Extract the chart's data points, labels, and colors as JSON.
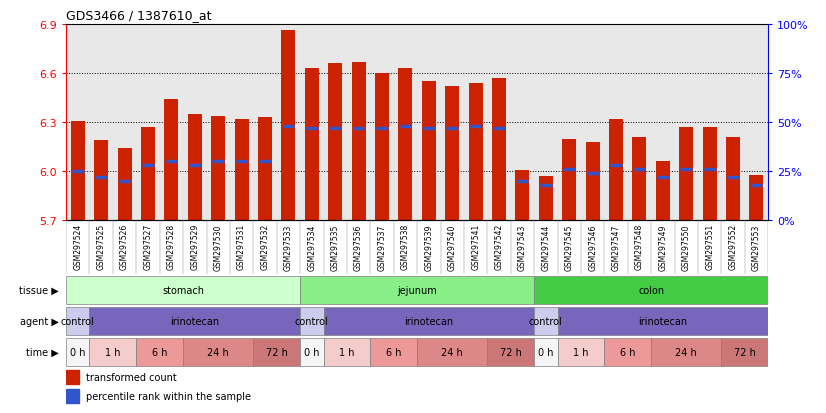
{
  "title": "GDS3466 / 1387610_at",
  "samples": [
    "GSM297524",
    "GSM297525",
    "GSM297526",
    "GSM297527",
    "GSM297528",
    "GSM297529",
    "GSM297530",
    "GSM297531",
    "GSM297532",
    "GSM297533",
    "GSM297534",
    "GSM297535",
    "GSM297536",
    "GSM297537",
    "GSM297538",
    "GSM297539",
    "GSM297540",
    "GSM297541",
    "GSM297542",
    "GSM297543",
    "GSM297544",
    "GSM297545",
    "GSM297546",
    "GSM297547",
    "GSM297548",
    "GSM297549",
    "GSM297550",
    "GSM297551",
    "GSM297552",
    "GSM297553"
  ],
  "bar_heights": [
    6.31,
    6.19,
    6.14,
    6.27,
    6.44,
    6.35,
    6.34,
    6.32,
    6.33,
    6.86,
    6.63,
    6.66,
    6.67,
    6.6,
    6.63,
    6.55,
    6.52,
    6.54,
    6.57,
    6.01,
    5.97,
    6.2,
    6.18,
    6.32,
    6.21,
    6.06,
    6.27,
    6.27,
    6.21,
    5.98
  ],
  "percentile_ranks": [
    25,
    22,
    20,
    28,
    30,
    28,
    30,
    30,
    30,
    48,
    47,
    47,
    47,
    47,
    48,
    47,
    47,
    48,
    47,
    20,
    18,
    26,
    24,
    28,
    26,
    22,
    26,
    26,
    22,
    18
  ],
  "ymin": 5.7,
  "ymax": 6.9,
  "yticks": [
    5.7,
    6.0,
    6.3,
    6.6,
    6.9
  ],
  "right_yticks": [
    0,
    25,
    50,
    75,
    100
  ],
  "right_yticklabels": [
    "0%",
    "25%",
    "50%",
    "75%",
    "100%"
  ],
  "bar_color": "#cc2200",
  "blue_color": "#3355cc",
  "bg_color": "#e8e8e8",
  "tissue_groups": [
    {
      "label": "stomach",
      "start": 0,
      "end": 10,
      "color": "#ccffcc"
    },
    {
      "label": "jejunum",
      "start": 10,
      "end": 20,
      "color": "#88ee88"
    },
    {
      "label": "colon",
      "start": 20,
      "end": 30,
      "color": "#44cc44"
    }
  ],
  "agent_groups": [
    {
      "label": "control",
      "start": 0,
      "end": 1,
      "color": "#ccccee"
    },
    {
      "label": "irinotecan",
      "start": 1,
      "end": 10,
      "color": "#7766bb"
    },
    {
      "label": "control",
      "start": 10,
      "end": 11,
      "color": "#ccccee"
    },
    {
      "label": "irinotecan",
      "start": 11,
      "end": 20,
      "color": "#7766bb"
    },
    {
      "label": "control",
      "start": 20,
      "end": 21,
      "color": "#ccccee"
    },
    {
      "label": "irinotecan",
      "start": 21,
      "end": 30,
      "color": "#7766bb"
    }
  ],
  "time_groups": [
    {
      "label": "0 h",
      "start": 0,
      "end": 1,
      "color": "#f5f5f5"
    },
    {
      "label": "1 h",
      "start": 1,
      "end": 3,
      "color": "#f5cccc"
    },
    {
      "label": "6 h",
      "start": 3,
      "end": 5,
      "color": "#ee9999"
    },
    {
      "label": "24 h",
      "start": 5,
      "end": 8,
      "color": "#dd8888"
    },
    {
      "label": "72 h",
      "start": 8,
      "end": 10,
      "color": "#cc7777"
    },
    {
      "label": "0 h",
      "start": 10,
      "end": 11,
      "color": "#f5f5f5"
    },
    {
      "label": "1 h",
      "start": 11,
      "end": 13,
      "color": "#f5cccc"
    },
    {
      "label": "6 h",
      "start": 13,
      "end": 15,
      "color": "#ee9999"
    },
    {
      "label": "24 h",
      "start": 15,
      "end": 18,
      "color": "#dd8888"
    },
    {
      "label": "72 h",
      "start": 18,
      "end": 20,
      "color": "#cc7777"
    },
    {
      "label": "0 h",
      "start": 20,
      "end": 21,
      "color": "#f5f5f5"
    },
    {
      "label": "1 h",
      "start": 21,
      "end": 23,
      "color": "#f5cccc"
    },
    {
      "label": "6 h",
      "start": 23,
      "end": 25,
      "color": "#ee9999"
    },
    {
      "label": "24 h",
      "start": 25,
      "end": 28,
      "color": "#dd8888"
    },
    {
      "label": "72 h",
      "start": 28,
      "end": 30,
      "color": "#cc7777"
    }
  ]
}
